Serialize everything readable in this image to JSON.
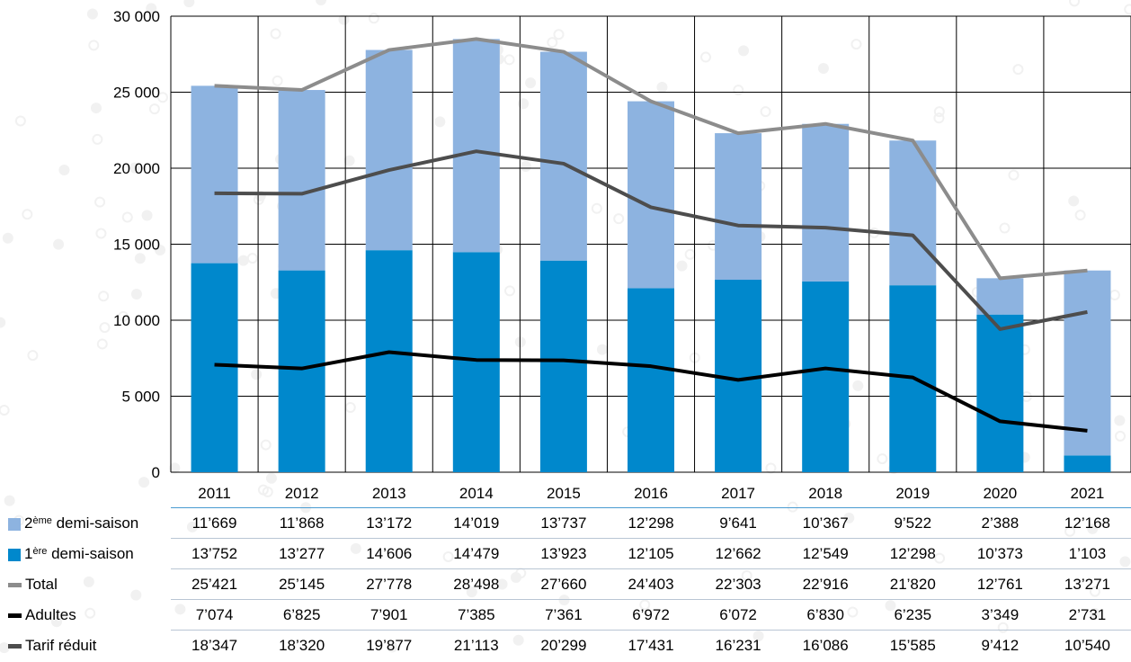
{
  "chart_data": {
    "type": "bar+line",
    "stacked": true,
    "categories": [
      "2011",
      "2012",
      "2013",
      "2014",
      "2015",
      "2016",
      "2017",
      "2018",
      "2019",
      "2020",
      "2021"
    ],
    "ylim": [
      0,
      30000
    ],
    "yticks": [
      0,
      5000,
      10000,
      15000,
      20000,
      25000,
      30000
    ],
    "ytick_labels": [
      "0",
      "5 000",
      "10 000",
      "15 000",
      "20 000",
      "25 000",
      "30 000"
    ],
    "grid": true,
    "bar_series": [
      {
        "key": "first",
        "name_pre": "1",
        "name_sup": "ère",
        "name_post": " demi-saison",
        "color": "#0088cc",
        "values": [
          13752,
          13277,
          14606,
          14479,
          13923,
          12105,
          12662,
          12549,
          12298,
          10373,
          1103
        ],
        "labels": [
          "13’752",
          "13’277",
          "14’606",
          "14’479",
          "13’923",
          "12’105",
          "12’662",
          "12’549",
          "12’298",
          "10’373",
          "1’103"
        ]
      },
      {
        "key": "second",
        "name_pre": "2",
        "name_sup": "ème",
        "name_post": " demi-saison",
        "color": "#8db3e0",
        "values": [
          11669,
          11868,
          13172,
          14019,
          13737,
          12298,
          9641,
          10367,
          9522,
          2388,
          12168
        ],
        "labels": [
          "11’669",
          "11’868",
          "13’172",
          "14’019",
          "13’737",
          "12’298",
          "9’641",
          "10’367",
          "9’522",
          "2’388",
          "12’168"
        ]
      }
    ],
    "line_series": [
      {
        "key": "total",
        "name": "Total",
        "color": "#8c8c8c",
        "values": [
          25421,
          25145,
          27778,
          28498,
          27660,
          24403,
          22303,
          22916,
          21820,
          12761,
          13271
        ],
        "labels": [
          "25’421",
          "25’145",
          "27’778",
          "28’498",
          "27’660",
          "24’403",
          "22’303",
          "22’916",
          "21’820",
          "12’761",
          "13’271"
        ]
      },
      {
        "key": "adultes",
        "name": "Adultes",
        "color": "#000000",
        "values": [
          7074,
          6825,
          7901,
          7385,
          7361,
          6972,
          6072,
          6830,
          6235,
          3349,
          2731
        ],
        "labels": [
          "7’074",
          "6’825",
          "7’901",
          "7’385",
          "7’361",
          "6’972",
          "6’072",
          "6’830",
          "6’235",
          "3’349",
          "2’731"
        ]
      },
      {
        "key": "reduit",
        "name": "Tarif réduit",
        "color": "#4d4d4d",
        "values": [
          18347,
          18320,
          19877,
          21113,
          20299,
          17431,
          16231,
          16086,
          15585,
          9412,
          10540
        ],
        "labels": [
          "18’347",
          "18’320",
          "19’877",
          "21’113",
          "20’299",
          "17’431",
          "16’231",
          "16’086",
          "15’585",
          "9’412",
          "10’540"
        ]
      }
    ],
    "table_order": [
      "second",
      "first",
      "total",
      "adultes",
      "reduit"
    ]
  }
}
